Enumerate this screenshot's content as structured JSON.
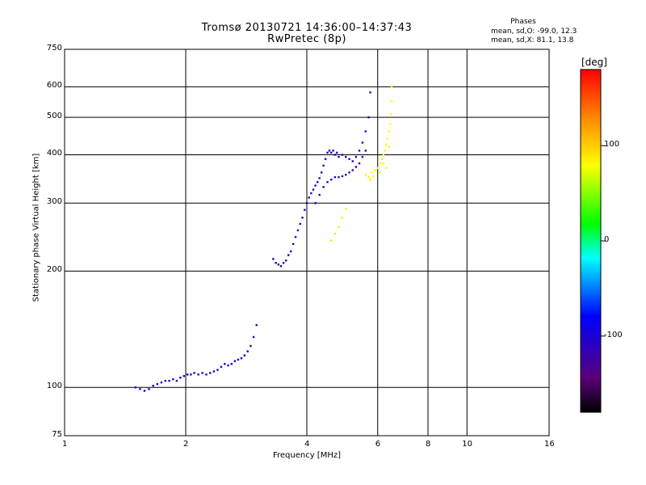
{
  "chart_data": {
    "type": "scatter",
    "title": "Tromsø 20130721 14:36:00–14:37:43",
    "subtitle": "RwPretec (8p)",
    "xlabel": "Frequency [MHz]",
    "ylabel": "Stationary phase Virtual Height [km]",
    "xscale": "log",
    "yscale": "log",
    "xlim": [
      1,
      16
    ],
    "ylim": [
      75,
      750
    ],
    "xticks": [
      1,
      2,
      4,
      6,
      8,
      10,
      16
    ],
    "xtick_labels": [
      "1",
      "2",
      "4",
      "6",
      "8",
      "10",
      "16"
    ],
    "yticks": [
      75,
      100,
      200,
      300,
      400,
      500,
      600,
      750
    ],
    "ytick_labels": [
      "75",
      "100",
      "200",
      "300",
      "400",
      "500",
      "600",
      "750"
    ],
    "grid": true,
    "phase_stats": {
      "header": "Phases",
      "line_o": "mean, sd,O: -99.0, 12.3",
      "line_x": "mean, sd,X:  81.1, 13.8"
    },
    "colorbar": {
      "label": "[deg]",
      "range": [
        -180,
        180
      ],
      "ticks": [
        -100,
        0,
        100
      ],
      "tick_labels": [
        "-100",
        "0",
        "100"
      ],
      "colormap": "rainbow"
    },
    "series": [
      {
        "values_note": "",
        "trace": "O",
        "points": [
          [
            1.5,
            100,
            -100
          ],
          [
            1.54,
            99,
            -102
          ],
          [
            1.58,
            98,
            -95
          ],
          [
            1.62,
            99,
            -105
          ],
          [
            1.66,
            101,
            -100
          ],
          [
            1.7,
            102,
            -98
          ],
          [
            1.74,
            103,
            -96
          ],
          [
            1.78,
            104,
            -104
          ],
          [
            1.82,
            104,
            -100
          ],
          [
            1.86,
            105,
            -92
          ],
          [
            1.9,
            104,
            -110
          ],
          [
            1.94,
            106,
            -100
          ],
          [
            1.98,
            107,
            -95
          ],
          [
            2.02,
            108,
            -100
          ],
          [
            2.06,
            108,
            -103
          ],
          [
            2.1,
            109,
            -97
          ],
          [
            2.15,
            108,
            -100
          ],
          [
            2.2,
            109,
            -110
          ],
          [
            2.25,
            108,
            -90
          ],
          [
            2.3,
            109,
            -100
          ],
          [
            2.35,
            110,
            -95
          ],
          [
            2.4,
            111,
            -100
          ],
          [
            2.45,
            113,
            -100
          ],
          [
            2.5,
            115,
            -88
          ],
          [
            2.55,
            114,
            -95
          ],
          [
            2.6,
            115,
            -90
          ],
          [
            2.65,
            117,
            -92
          ],
          [
            2.7,
            118,
            -93
          ],
          [
            2.75,
            119,
            -95
          ],
          [
            2.8,
            121,
            -88
          ],
          [
            2.85,
            124,
            -90
          ],
          [
            2.9,
            128,
            -98
          ],
          [
            2.95,
            135,
            -100
          ],
          [
            3.0,
            145,
            -105
          ],
          [
            3.3,
            215,
            -110
          ],
          [
            3.35,
            210,
            -108
          ],
          [
            3.4,
            208,
            -110
          ],
          [
            3.45,
            206,
            -105
          ],
          [
            3.5,
            210,
            -110
          ],
          [
            3.55,
            213,
            -107
          ],
          [
            3.6,
            220,
            -108
          ],
          [
            3.65,
            225,
            -110
          ],
          [
            3.7,
            235,
            -112
          ],
          [
            3.75,
            245,
            -110
          ],
          [
            3.8,
            255,
            -115
          ],
          [
            3.85,
            265,
            -108
          ],
          [
            3.9,
            275,
            -110
          ],
          [
            3.95,
            288,
            -112
          ],
          [
            4.0,
            300,
            -110
          ],
          [
            4.05,
            310,
            -108
          ],
          [
            4.1,
            318,
            -110
          ],
          [
            4.15,
            325,
            -115
          ],
          [
            4.2,
            333,
            -110
          ],
          [
            4.25,
            340,
            -108
          ],
          [
            4.3,
            348,
            -112
          ],
          [
            4.35,
            360,
            -110
          ],
          [
            4.4,
            375,
            -110
          ],
          [
            4.45,
            390,
            -105
          ],
          [
            4.5,
            405,
            -110
          ],
          [
            4.55,
            410,
            -110
          ],
          [
            4.6,
            405,
            -112
          ],
          [
            4.65,
            410,
            -108
          ],
          [
            4.7,
            400,
            -110
          ],
          [
            4.75,
            405,
            -110
          ],
          [
            4.8,
            395,
            -105
          ],
          [
            4.9,
            400,
            -110
          ],
          [
            5.0,
            395,
            -108
          ],
          [
            5.1,
            390,
            -110
          ],
          [
            5.2,
            385,
            -110
          ],
          [
            5.3,
            395,
            -108
          ],
          [
            5.4,
            410,
            -110
          ],
          [
            5.5,
            430,
            -110
          ],
          [
            5.6,
            460,
            -108
          ],
          [
            5.7,
            500,
            -110
          ],
          [
            5.75,
            580,
            -105
          ],
          [
            4.2,
            300,
            -110
          ],
          [
            4.3,
            315,
            -110
          ],
          [
            4.4,
            330,
            -108
          ],
          [
            4.5,
            340,
            -110
          ],
          [
            4.6,
            345,
            -108
          ],
          [
            4.7,
            350,
            -110
          ],
          [
            4.8,
            350,
            -112
          ],
          [
            4.9,
            352,
            -110
          ],
          [
            5.0,
            355,
            -108
          ],
          [
            5.1,
            360,
            -110
          ],
          [
            5.2,
            365,
            -108
          ],
          [
            5.3,
            372,
            -110
          ],
          [
            5.4,
            380,
            -112
          ],
          [
            5.5,
            395,
            -110
          ],
          [
            5.6,
            410,
            -108
          ]
        ]
      },
      {
        "trace": "X",
        "points": [
          [
            5.6,
            355,
            85
          ],
          [
            5.7,
            350,
            80
          ],
          [
            5.8,
            360,
            82
          ],
          [
            5.9,
            365,
            85
          ],
          [
            6.0,
            370,
            80
          ],
          [
            6.1,
            380,
            82
          ],
          [
            6.15,
            390,
            78
          ],
          [
            6.2,
            400,
            85
          ],
          [
            6.25,
            410,
            80
          ],
          [
            6.3,
            425,
            82
          ],
          [
            6.35,
            440,
            80
          ],
          [
            6.4,
            460,
            83
          ],
          [
            6.45,
            480,
            80
          ],
          [
            6.48,
            510,
            82
          ],
          [
            6.5,
            550,
            78
          ],
          [
            6.5,
            600,
            80
          ],
          [
            6.05,
            360,
            76
          ],
          [
            6.2,
            380,
            82
          ],
          [
            6.3,
            370,
            80
          ],
          [
            6.4,
            420,
            85
          ],
          [
            5.75,
            345,
            88
          ],
          [
            5.85,
            352,
            84
          ],
          [
            4.7,
            250,
            90
          ],
          [
            4.8,
            260,
            88
          ],
          [
            4.9,
            275,
            85
          ],
          [
            5.0,
            290,
            82
          ],
          [
            4.6,
            240,
            95
          ]
        ]
      }
    ]
  }
}
